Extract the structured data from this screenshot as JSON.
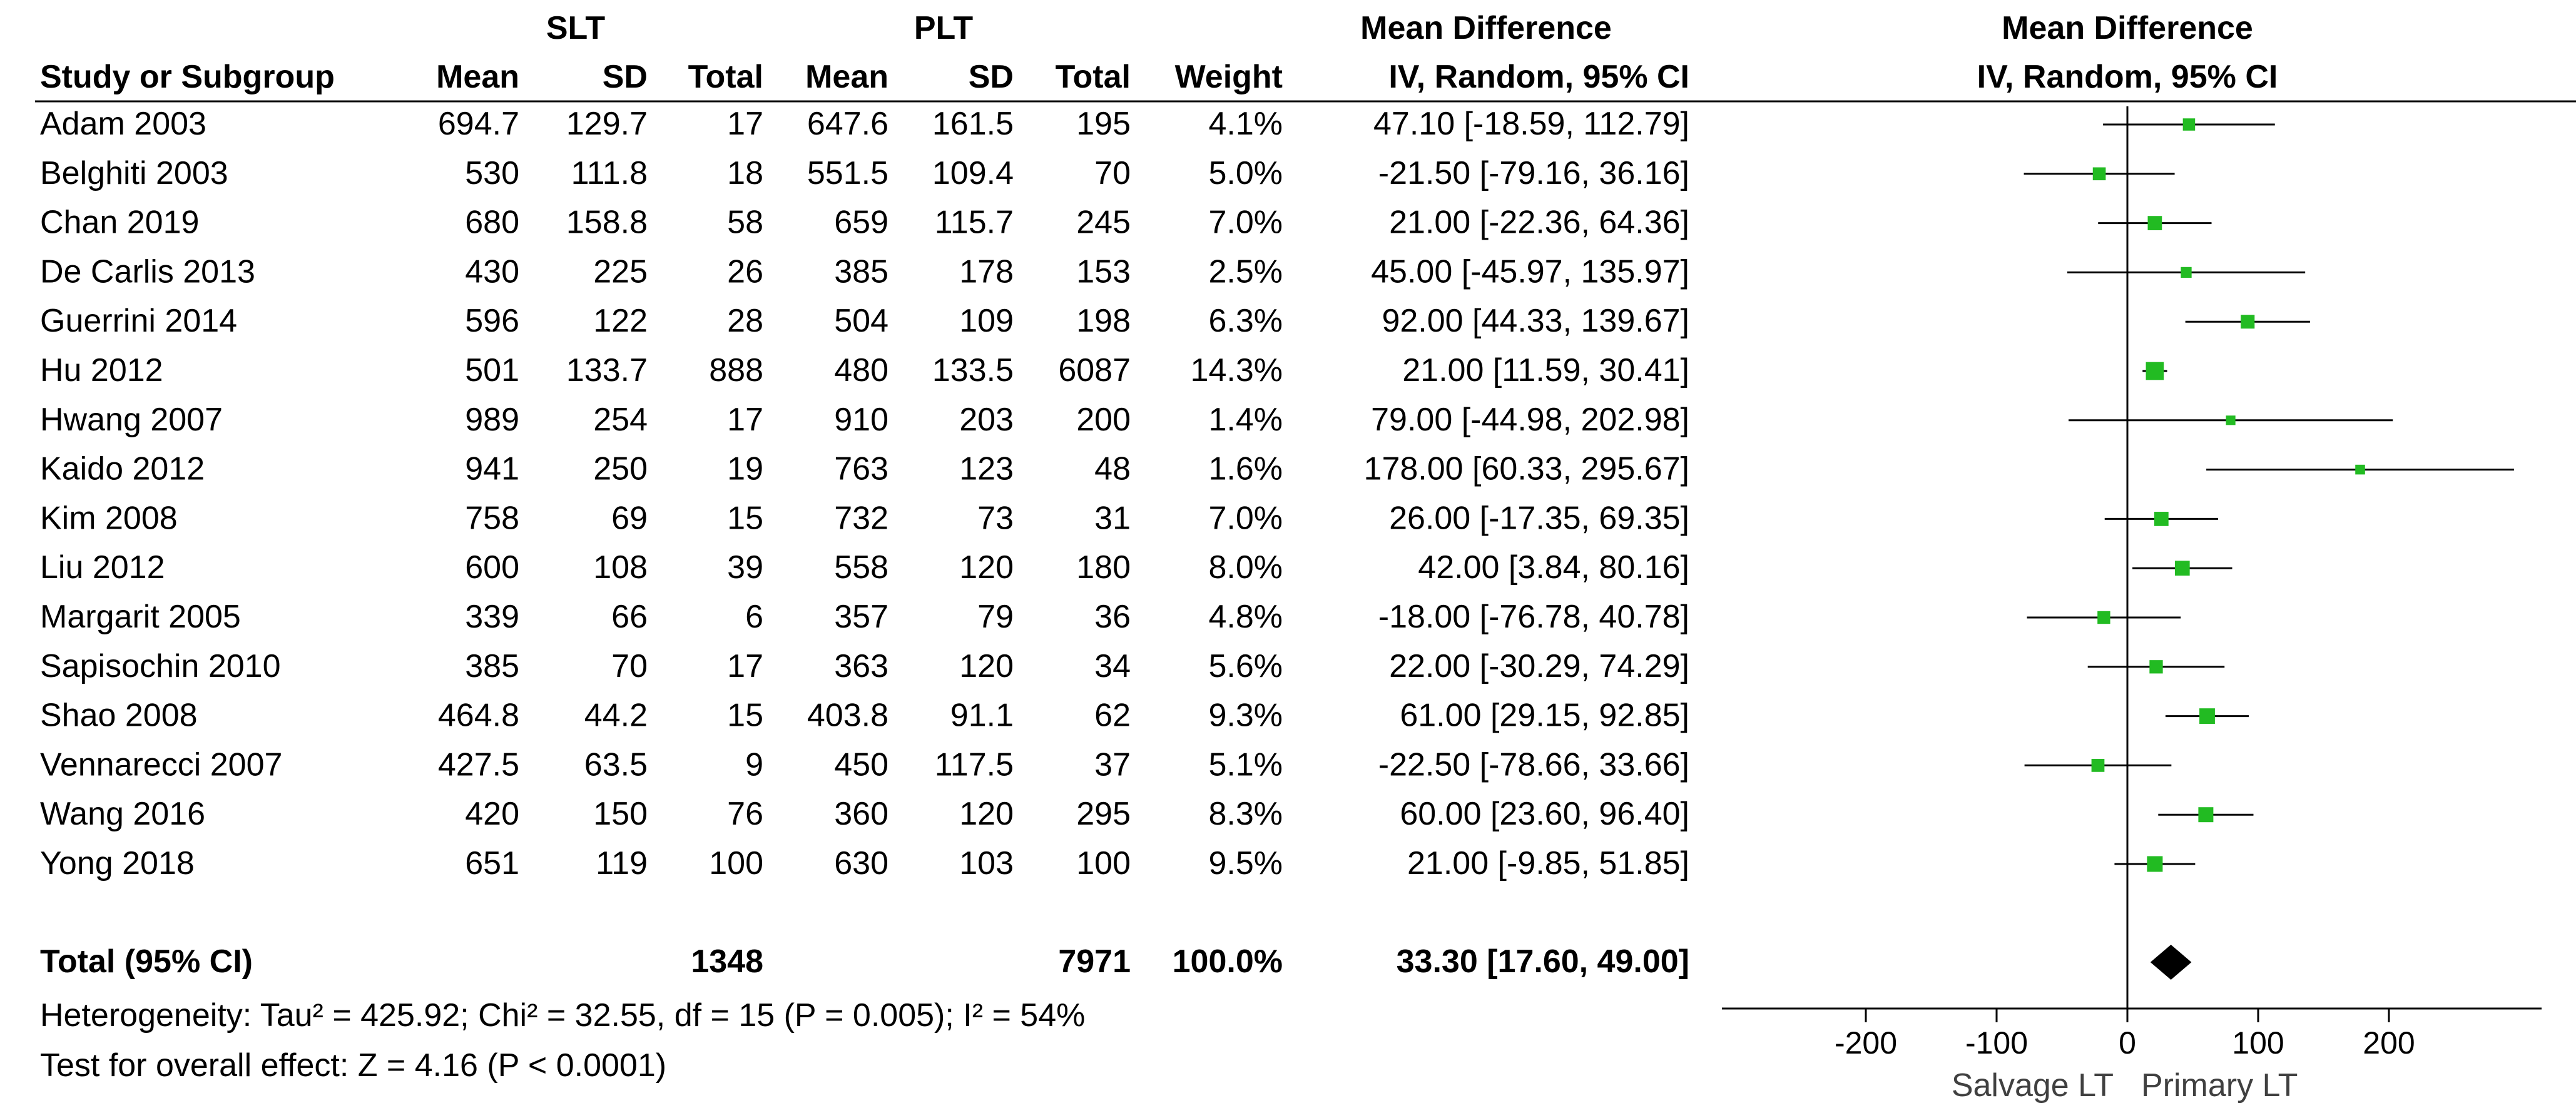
{
  "group_headers": {
    "exp": "SLT",
    "ctrl": "PLT",
    "effect_left": "Mean Difference",
    "effect_right": "Mean Difference"
  },
  "columns": {
    "study": "Study or Subgroup",
    "mean1": "Mean",
    "sd1": "SD",
    "total1": "Total",
    "mean2": "Mean",
    "sd2": "SD",
    "total2": "Total",
    "weight": "Weight",
    "ci_left": "IV, Random, 95% CI",
    "ci_right": "IV, Random, 95% CI"
  },
  "studies": [
    {
      "name": "Adam 2003",
      "mean1": "694.7",
      "sd1": "129.7",
      "total1": "17",
      "mean2": "647.6",
      "sd2": "161.5",
      "total2": "195",
      "weight": "4.1%",
      "ci_text": "47.10 [-18.59, 112.79]"
    },
    {
      "name": "Belghiti 2003",
      "mean1": "530",
      "sd1": "111.8",
      "total1": "18",
      "mean2": "551.5",
      "sd2": "109.4",
      "total2": "70",
      "weight": "5.0%",
      "ci_text": "-21.50 [-79.16, 36.16]"
    },
    {
      "name": "Chan 2019",
      "mean1": "680",
      "sd1": "158.8",
      "total1": "58",
      "mean2": "659",
      "sd2": "115.7",
      "total2": "245",
      "weight": "7.0%",
      "ci_text": "21.00 [-22.36, 64.36]"
    },
    {
      "name": "De Carlis 2013",
      "mean1": "430",
      "sd1": "225",
      "total1": "26",
      "mean2": "385",
      "sd2": "178",
      "total2": "153",
      "weight": "2.5%",
      "ci_text": "45.00 [-45.97, 135.97]"
    },
    {
      "name": "Guerrini 2014",
      "mean1": "596",
      "sd1": "122",
      "total1": "28",
      "mean2": "504",
      "sd2": "109",
      "total2": "198",
      "weight": "6.3%",
      "ci_text": "92.00 [44.33, 139.67]"
    },
    {
      "name": "Hu 2012",
      "mean1": "501",
      "sd1": "133.7",
      "total1": "888",
      "mean2": "480",
      "sd2": "133.5",
      "total2": "6087",
      "weight": "14.3%",
      "ci_text": "21.00 [11.59, 30.41]"
    },
    {
      "name": "Hwang 2007",
      "mean1": "989",
      "sd1": "254",
      "total1": "17",
      "mean2": "910",
      "sd2": "203",
      "total2": "200",
      "weight": "1.4%",
      "ci_text": "79.00 [-44.98, 202.98]"
    },
    {
      "name": "Kaido 2012",
      "mean1": "941",
      "sd1": "250",
      "total1": "19",
      "mean2": "763",
      "sd2": "123",
      "total2": "48",
      "weight": "1.6%",
      "ci_text": "178.00 [60.33, 295.67]"
    },
    {
      "name": "Kim 2008",
      "mean1": "758",
      "sd1": "69",
      "total1": "15",
      "mean2": "732",
      "sd2": "73",
      "total2": "31",
      "weight": "7.0%",
      "ci_text": "26.00 [-17.35, 69.35]"
    },
    {
      "name": "Liu 2012",
      "mean1": "600",
      "sd1": "108",
      "total1": "39",
      "mean2": "558",
      "sd2": "120",
      "total2": "180",
      "weight": "8.0%",
      "ci_text": "42.00 [3.84, 80.16]"
    },
    {
      "name": "Margarit 2005",
      "mean1": "339",
      "sd1": "66",
      "total1": "6",
      "mean2": "357",
      "sd2": "79",
      "total2": "36",
      "weight": "4.8%",
      "ci_text": "-18.00 [-76.78, 40.78]"
    },
    {
      "name": "Sapisochin 2010",
      "mean1": "385",
      "sd1": "70",
      "total1": "17",
      "mean2": "363",
      "sd2": "120",
      "total2": "34",
      "weight": "5.6%",
      "ci_text": "22.00 [-30.29, 74.29]"
    },
    {
      "name": "Shao 2008",
      "mean1": "464.8",
      "sd1": "44.2",
      "total1": "15",
      "mean2": "403.8",
      "sd2": "91.1",
      "total2": "62",
      "weight": "9.3%",
      "ci_text": "61.00 [29.15, 92.85]"
    },
    {
      "name": "Vennarecci 2007",
      "mean1": "427.5",
      "sd1": "63.5",
      "total1": "9",
      "mean2": "450",
      "sd2": "117.5",
      "total2": "37",
      "weight": "5.1%",
      "ci_text": "-22.50 [-78.66, 33.66]"
    },
    {
      "name": "Wang 2016",
      "mean1": "420",
      "sd1": "150",
      "total1": "76",
      "mean2": "360",
      "sd2": "120",
      "total2": "295",
      "weight": "8.3%",
      "ci_text": "60.00 [23.60, 96.40]"
    },
    {
      "name": "Yong 2018",
      "mean1": "651",
      "sd1": "119",
      "total1": "100",
      "mean2": "630",
      "sd2": "103",
      "total2": "100",
      "weight": "9.5%",
      "ci_text": "21.00 [-9.85, 51.85]"
    }
  ],
  "total": {
    "label": "Total (95% CI)",
    "total1": "1348",
    "total2": "7971",
    "weight": "100.0%",
    "ci_text": "33.30 [17.60, 49.00]"
  },
  "footer": {
    "heterogeneity": "Heterogeneity: Tau² = 425.92; Chi² = 32.55, df = 15 (P = 0.005); I² = 54%",
    "overall": "Test for overall effect: Z = 4.16 (P < 0.0001)"
  },
  "colors": {
    "marker": "#22bb22",
    "diamond": "#000000",
    "line": "#000000"
  },
  "chart_data": {
    "type": "forest",
    "title": "Mean Difference IV, Random, 95% CI",
    "xlim": [
      -300,
      300
    ],
    "xticks": [
      -200,
      -100,
      0,
      100,
      200
    ],
    "tick_labels": [
      "-200",
      "-100",
      "0",
      "100",
      "200"
    ],
    "xlabel_left": "Salvage LT",
    "xlabel_right": "Primary LT",
    "series": [
      {
        "name": "Adam 2003",
        "md": 47.1,
        "lo": -18.59,
        "hi": 112.79,
        "weight": 4.1
      },
      {
        "name": "Belghiti 2003",
        "md": -21.5,
        "lo": -79.16,
        "hi": 36.16,
        "weight": 5.0
      },
      {
        "name": "Chan 2019",
        "md": 21.0,
        "lo": -22.36,
        "hi": 64.36,
        "weight": 7.0
      },
      {
        "name": "De Carlis 2013",
        "md": 45.0,
        "lo": -45.97,
        "hi": 135.97,
        "weight": 2.5
      },
      {
        "name": "Guerrini 2014",
        "md": 92.0,
        "lo": 44.33,
        "hi": 139.67,
        "weight": 6.3
      },
      {
        "name": "Hu 2012",
        "md": 21.0,
        "lo": 11.59,
        "hi": 30.41,
        "weight": 14.3
      },
      {
        "name": "Hwang 2007",
        "md": 79.0,
        "lo": -44.98,
        "hi": 202.98,
        "weight": 1.4
      },
      {
        "name": "Kaido 2012",
        "md": 178.0,
        "lo": 60.33,
        "hi": 295.67,
        "weight": 1.6
      },
      {
        "name": "Kim 2008",
        "md": 26.0,
        "lo": -17.35,
        "hi": 69.35,
        "weight": 7.0
      },
      {
        "name": "Liu 2012",
        "md": 42.0,
        "lo": 3.84,
        "hi": 80.16,
        "weight": 8.0
      },
      {
        "name": "Margarit 2005",
        "md": -18.0,
        "lo": -76.78,
        "hi": 40.78,
        "weight": 4.8
      },
      {
        "name": "Sapisochin 2010",
        "md": 22.0,
        "lo": -30.29,
        "hi": 74.29,
        "weight": 5.6
      },
      {
        "name": "Shao 2008",
        "md": 61.0,
        "lo": 29.15,
        "hi": 92.85,
        "weight": 9.3
      },
      {
        "name": "Vennarecci 2007",
        "md": -22.5,
        "lo": -78.66,
        "hi": 33.66,
        "weight": 5.1
      },
      {
        "name": "Wang 2016",
        "md": 60.0,
        "lo": 23.6,
        "hi": 96.4,
        "weight": 8.3
      },
      {
        "name": "Yong 2018",
        "md": 21.0,
        "lo": -9.85,
        "hi": 51.85,
        "weight": 9.5
      }
    ],
    "pooled": {
      "md": 33.3,
      "lo": 17.6,
      "hi": 49.0
    }
  }
}
